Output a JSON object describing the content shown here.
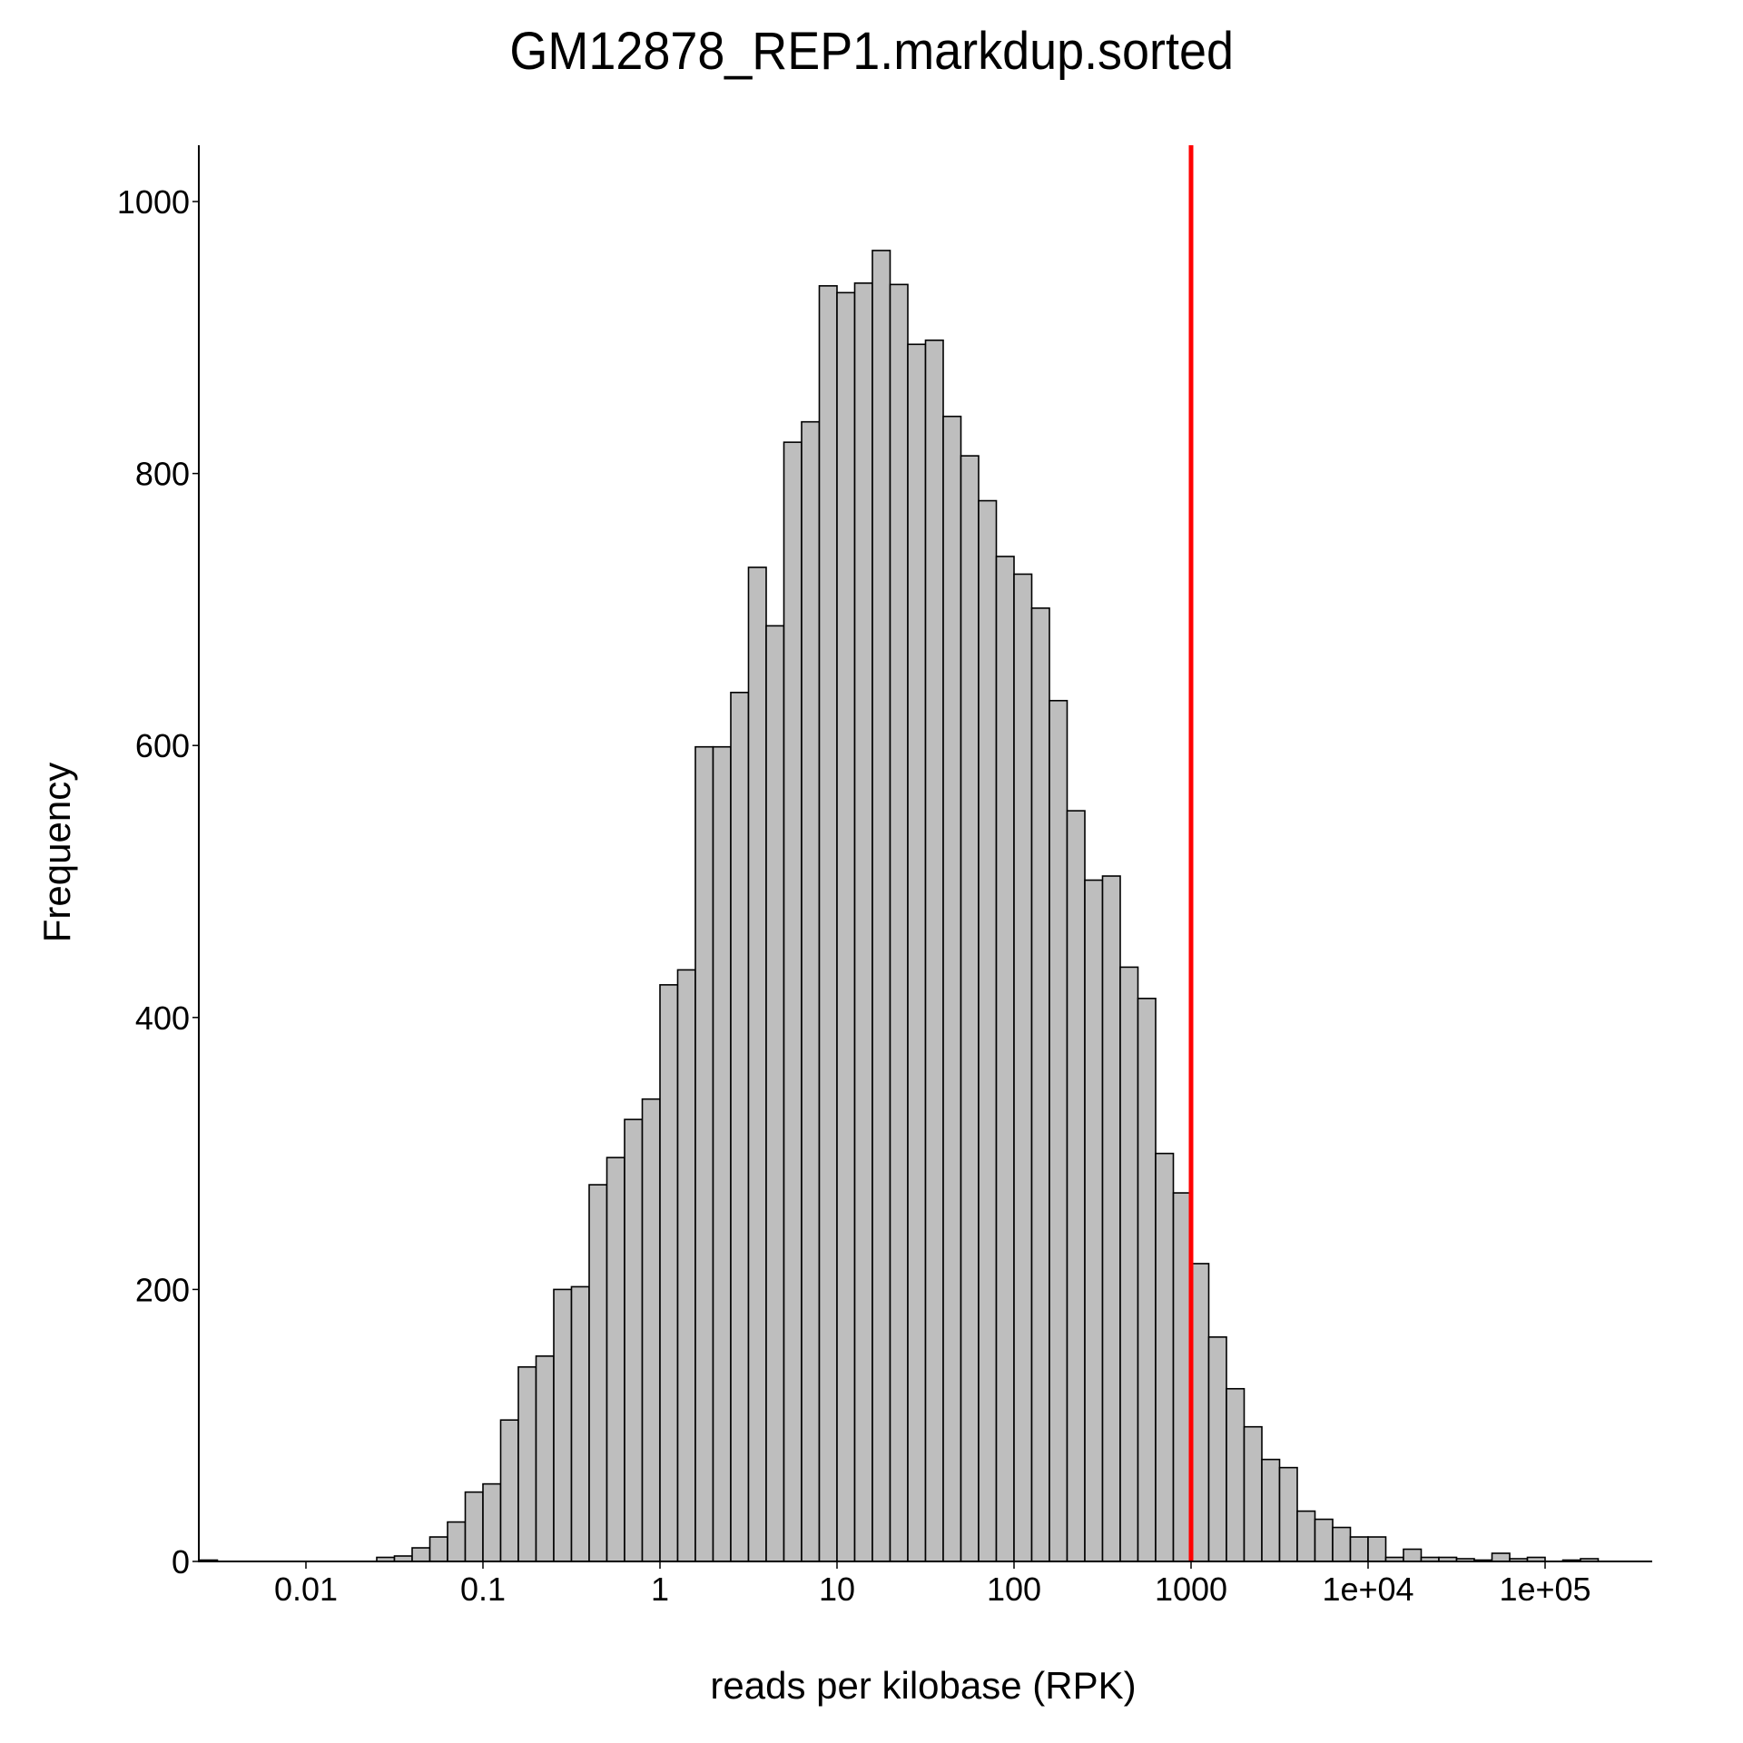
{
  "chart_data": {
    "type": "bar",
    "subtype": "histogram",
    "title": "GM12878_REP1.markdup.sorted",
    "xlabel": "reads per kilobase (RPK)",
    "ylabel": "Frequency",
    "x_scale": "log10",
    "bin_width_log10": 0.1,
    "ylim": [
      0,
      1040
    ],
    "y_ticks": [
      0,
      200,
      400,
      600,
      800,
      1000
    ],
    "x_ticks": [
      {
        "value": 0.01,
        "label": "0.01"
      },
      {
        "value": 0.1,
        "label": "0.1"
      },
      {
        "value": 1,
        "label": "1"
      },
      {
        "value": 10,
        "label": "10"
      },
      {
        "value": 100,
        "label": "100"
      },
      {
        "value": 1000,
        "label": "1000"
      },
      {
        "value": 10000,
        "label": "1e+04"
      },
      {
        "value": 100000,
        "label": "1e+05"
      }
    ],
    "bins_log10_start": [
      -2.6,
      -2.5,
      -2.4,
      -2.3,
      -2.2,
      -2.1,
      -2.0,
      -1.9,
      -1.8,
      -1.7,
      -1.6,
      -1.5,
      -1.4,
      -1.3,
      -1.2,
      -1.1,
      -1.0,
      -0.9,
      -0.8,
      -0.7,
      -0.6,
      -0.5,
      -0.4,
      -0.3,
      -0.2,
      -0.1,
      0.0,
      0.1,
      0.2,
      0.3,
      0.4,
      0.5,
      0.6,
      0.7,
      0.8,
      0.9,
      1.0,
      1.1,
      1.2,
      1.3,
      1.4,
      1.5,
      1.6,
      1.7,
      1.8,
      1.9,
      2.0,
      2.1,
      2.2,
      2.3,
      2.4,
      2.5,
      2.6,
      2.7,
      2.8,
      2.9,
      3.0,
      3.1,
      3.2,
      3.3,
      3.4,
      3.5,
      3.6,
      3.7,
      3.8,
      3.9,
      4.0,
      4.1,
      4.2,
      4.3,
      4.4,
      4.5,
      4.6,
      4.7,
      4.8,
      4.9,
      5.0,
      5.1,
      5.2
    ],
    "values": [
      1,
      0,
      0,
      0,
      0,
      0,
      0,
      0,
      0,
      0,
      3,
      4,
      10,
      18,
      29,
      51,
      57,
      104,
      143,
      151,
      200,
      202,
      277,
      297,
      325,
      340,
      424,
      435,
      599,
      599,
      639,
      731,
      688,
      823,
      838,
      938,
      933,
      940,
      964,
      939,
      895,
      898,
      842,
      813,
      780,
      739,
      726,
      701,
      633,
      552,
      501,
      504,
      437,
      414,
      300,
      271,
      219,
      165,
      127,
      99,
      75,
      69,
      37,
      31,
      25,
      18,
      18,
      3,
      9,
      3,
      3,
      2,
      1,
      6,
      2,
      3,
      0,
      1,
      2
    ],
    "annotations": [
      {
        "type": "vline",
        "x": 1000,
        "color": "#ff0000"
      }
    ],
    "bar_fill": "#bebebe",
    "bar_edge": "#000000",
    "grid": false,
    "legend": null
  }
}
